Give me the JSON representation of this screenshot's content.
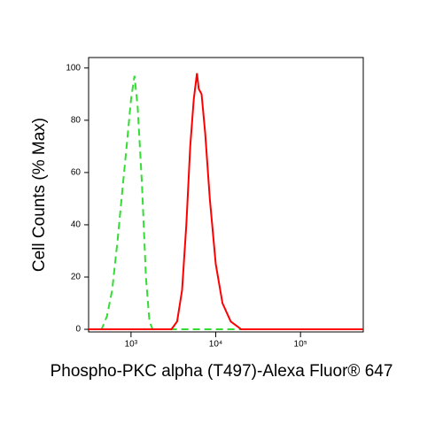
{
  "chart_data": {
    "type": "line",
    "xlabel": "Phospho-PKC alpha (T497)-Alexa Fluor® 647",
    "ylabel": "Cell Counts (% Max)",
    "xscale": "log",
    "xlim": [
      316,
      550000
    ],
    "ylim": [
      -1,
      104
    ],
    "xticks": [
      {
        "value": 1000,
        "label": "10³"
      },
      {
        "value": 10000,
        "label": "10⁴"
      },
      {
        "value": 100000,
        "label": "10⁵"
      }
    ],
    "yticks": [
      0,
      20,
      40,
      60,
      80,
      100
    ],
    "series": [
      {
        "color": "#33dd33",
        "dash": true,
        "x": [
          316,
          450,
          520,
          600,
          700,
          800,
          900,
          1000,
          1100,
          1200,
          1350,
          1500,
          1650,
          1800,
          550000
        ],
        "values": [
          0,
          0,
          5,
          15,
          35,
          55,
          72,
          88,
          97,
          85,
          55,
          20,
          3,
          0,
          0
        ]
      },
      {
        "color": "#ff0000",
        "dash": false,
        "x": [
          316,
          3000,
          3500,
          4000,
          4500,
          5000,
          5500,
          6000,
          6300,
          6800,
          7500,
          8500,
          10000,
          12000,
          15000,
          20000,
          550000
        ],
        "values": [
          0,
          0,
          3,
          15,
          40,
          70,
          88,
          98,
          92,
          90,
          75,
          50,
          25,
          10,
          3,
          0,
          0
        ]
      }
    ]
  }
}
